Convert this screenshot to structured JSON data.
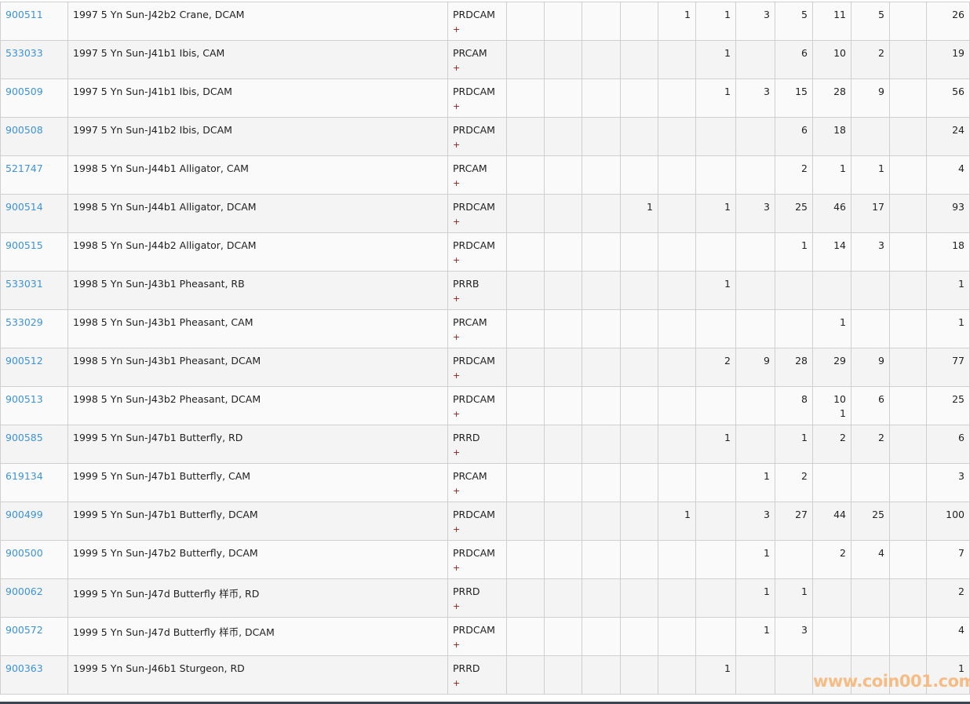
{
  "watermark": "www.coin001.com",
  "rows": [
    {
      "id": "900511",
      "desc": "1997 5 Yn Sun-J42b2 Crane, DCAM",
      "grade": "PRDCAM",
      "plus": "+",
      "counts": [
        "",
        "",
        "",
        "",
        "1",
        "1",
        "3",
        "5",
        "11",
        "5",
        "",
        "26"
      ]
    },
    {
      "id": "533033",
      "desc": "1997 5 Yn Sun-J41b1 Ibis, CAM",
      "grade": "PRCAM",
      "plus": "+",
      "counts": [
        "",
        "",
        "",
        "",
        "",
        "1",
        "",
        "6",
        "10",
        "2",
        "",
        "19"
      ]
    },
    {
      "id": "900509",
      "desc": "1997 5 Yn Sun-J41b1 Ibis, DCAM",
      "grade": "PRDCAM",
      "plus": "+",
      "counts": [
        "",
        "",
        "",
        "",
        "",
        "1",
        "3",
        "15",
        "28",
        "9",
        "",
        "56"
      ]
    },
    {
      "id": "900508",
      "desc": "1997 5 Yn Sun-J41b2 Ibis, DCAM",
      "grade": "PRDCAM",
      "plus": "+",
      "counts": [
        "",
        "",
        "",
        "",
        "",
        "",
        "",
        "6",
        "18",
        "",
        "",
        "24"
      ]
    },
    {
      "id": "521747",
      "desc": "1998 5 Yn Sun-J44b1 Alligator, CAM",
      "grade": "PRCAM",
      "plus": "+",
      "counts": [
        "",
        "",
        "",
        "",
        "",
        "",
        "",
        "2",
        "1",
        "1",
        "",
        "4"
      ]
    },
    {
      "id": "900514",
      "desc": "1998 5 Yn Sun-J44b1 Alligator, DCAM",
      "grade": "PRDCAM",
      "plus": "+",
      "counts": [
        "",
        "",
        "",
        "1",
        "",
        "1",
        "3",
        "25",
        "46",
        "17",
        "",
        "93"
      ]
    },
    {
      "id": "900515",
      "desc": "1998 5 Yn Sun-J44b2 Alligator, DCAM",
      "grade": "PRDCAM",
      "plus": "+",
      "counts": [
        "",
        "",
        "",
        "",
        "",
        "",
        "",
        "1",
        "14",
        "3",
        "",
        "18"
      ]
    },
    {
      "id": "533031",
      "desc": "1998 5 Yn Sun-J43b1 Pheasant, RB",
      "grade": "PRRB",
      "plus": "+",
      "counts": [
        "",
        "",
        "",
        "",
        "",
        "1",
        "",
        "",
        "",
        "",
        "",
        "1"
      ]
    },
    {
      "id": "533029",
      "desc": "1998 5 Yn Sun-J43b1 Pheasant, CAM",
      "grade": "PRCAM",
      "plus": "+",
      "counts": [
        "",
        "",
        "",
        "",
        "",
        "",
        "",
        "",
        "1",
        "",
        "",
        "1"
      ]
    },
    {
      "id": "900512",
      "desc": "1998 5 Yn Sun-J43b1 Pheasant, DCAM",
      "grade": "PRDCAM",
      "plus": "+",
      "counts": [
        "",
        "",
        "",
        "",
        "",
        "2",
        "9",
        "28",
        "29",
        "9",
        "",
        "77"
      ]
    },
    {
      "id": "900513",
      "desc": "1998 5 Yn Sun-J43b2 Pheasant, DCAM",
      "grade": "PRDCAM",
      "plus": "+",
      "counts": [
        "",
        "",
        "",
        "",
        "",
        "",
        "",
        "8",
        "10",
        "6",
        "",
        "25"
      ],
      "plus_counts": [
        "",
        "",
        "",
        "",
        "",
        "",
        "",
        "",
        "1",
        "",
        "",
        ""
      ]
    },
    {
      "id": "900585",
      "desc": "1999 5 Yn Sun-J47b1 Butterfly, RD",
      "grade": "PRRD",
      "plus": "+",
      "counts": [
        "",
        "",
        "",
        "",
        "",
        "1",
        "",
        "1",
        "2",
        "2",
        "",
        "6"
      ]
    },
    {
      "id": "619134",
      "desc": "1999 5 Yn Sun-J47b1 Butterfly, CAM",
      "grade": "PRCAM",
      "plus": "+",
      "counts": [
        "",
        "",
        "",
        "",
        "",
        "",
        "1",
        "2",
        "",
        "",
        "",
        "3"
      ]
    },
    {
      "id": "900499",
      "desc": "1999 5 Yn Sun-J47b1 Butterfly, DCAM",
      "grade": "PRDCAM",
      "plus": "+",
      "counts": [
        "",
        "",
        "",
        "",
        "1",
        "",
        "3",
        "27",
        "44",
        "25",
        "",
        "100"
      ]
    },
    {
      "id": "900500",
      "desc": "1999 5 Yn Sun-J47b2 Butterfly, DCAM",
      "grade": "PRDCAM",
      "plus": "+",
      "counts": [
        "",
        "",
        "",
        "",
        "",
        "",
        "1",
        "",
        "2",
        "4",
        "",
        "7"
      ]
    },
    {
      "id": "900062",
      "desc": "1999 5 Yn Sun-J47d Butterfly 样币, RD",
      "grade": "PRRD",
      "plus": "+",
      "counts": [
        "",
        "",
        "",
        "",
        "",
        "",
        "1",
        "1",
        "",
        "",
        "",
        "2"
      ]
    },
    {
      "id": "900572",
      "desc": "1999 5 Yn Sun-J47d Butterfly 样币, DCAM",
      "grade": "PRDCAM",
      "plus": "+",
      "counts": [
        "",
        "",
        "",
        "",
        "",
        "",
        "1",
        "3",
        "",
        "",
        "",
        "4"
      ]
    },
    {
      "id": "900363",
      "desc": "1999 5 Yn Sun-J46b1 Sturgeon, RD",
      "grade": "PRRD",
      "plus": "+",
      "counts": [
        "",
        "",
        "",
        "",
        "",
        "1",
        "",
        "",
        "",
        "",
        "",
        "1"
      ]
    }
  ]
}
